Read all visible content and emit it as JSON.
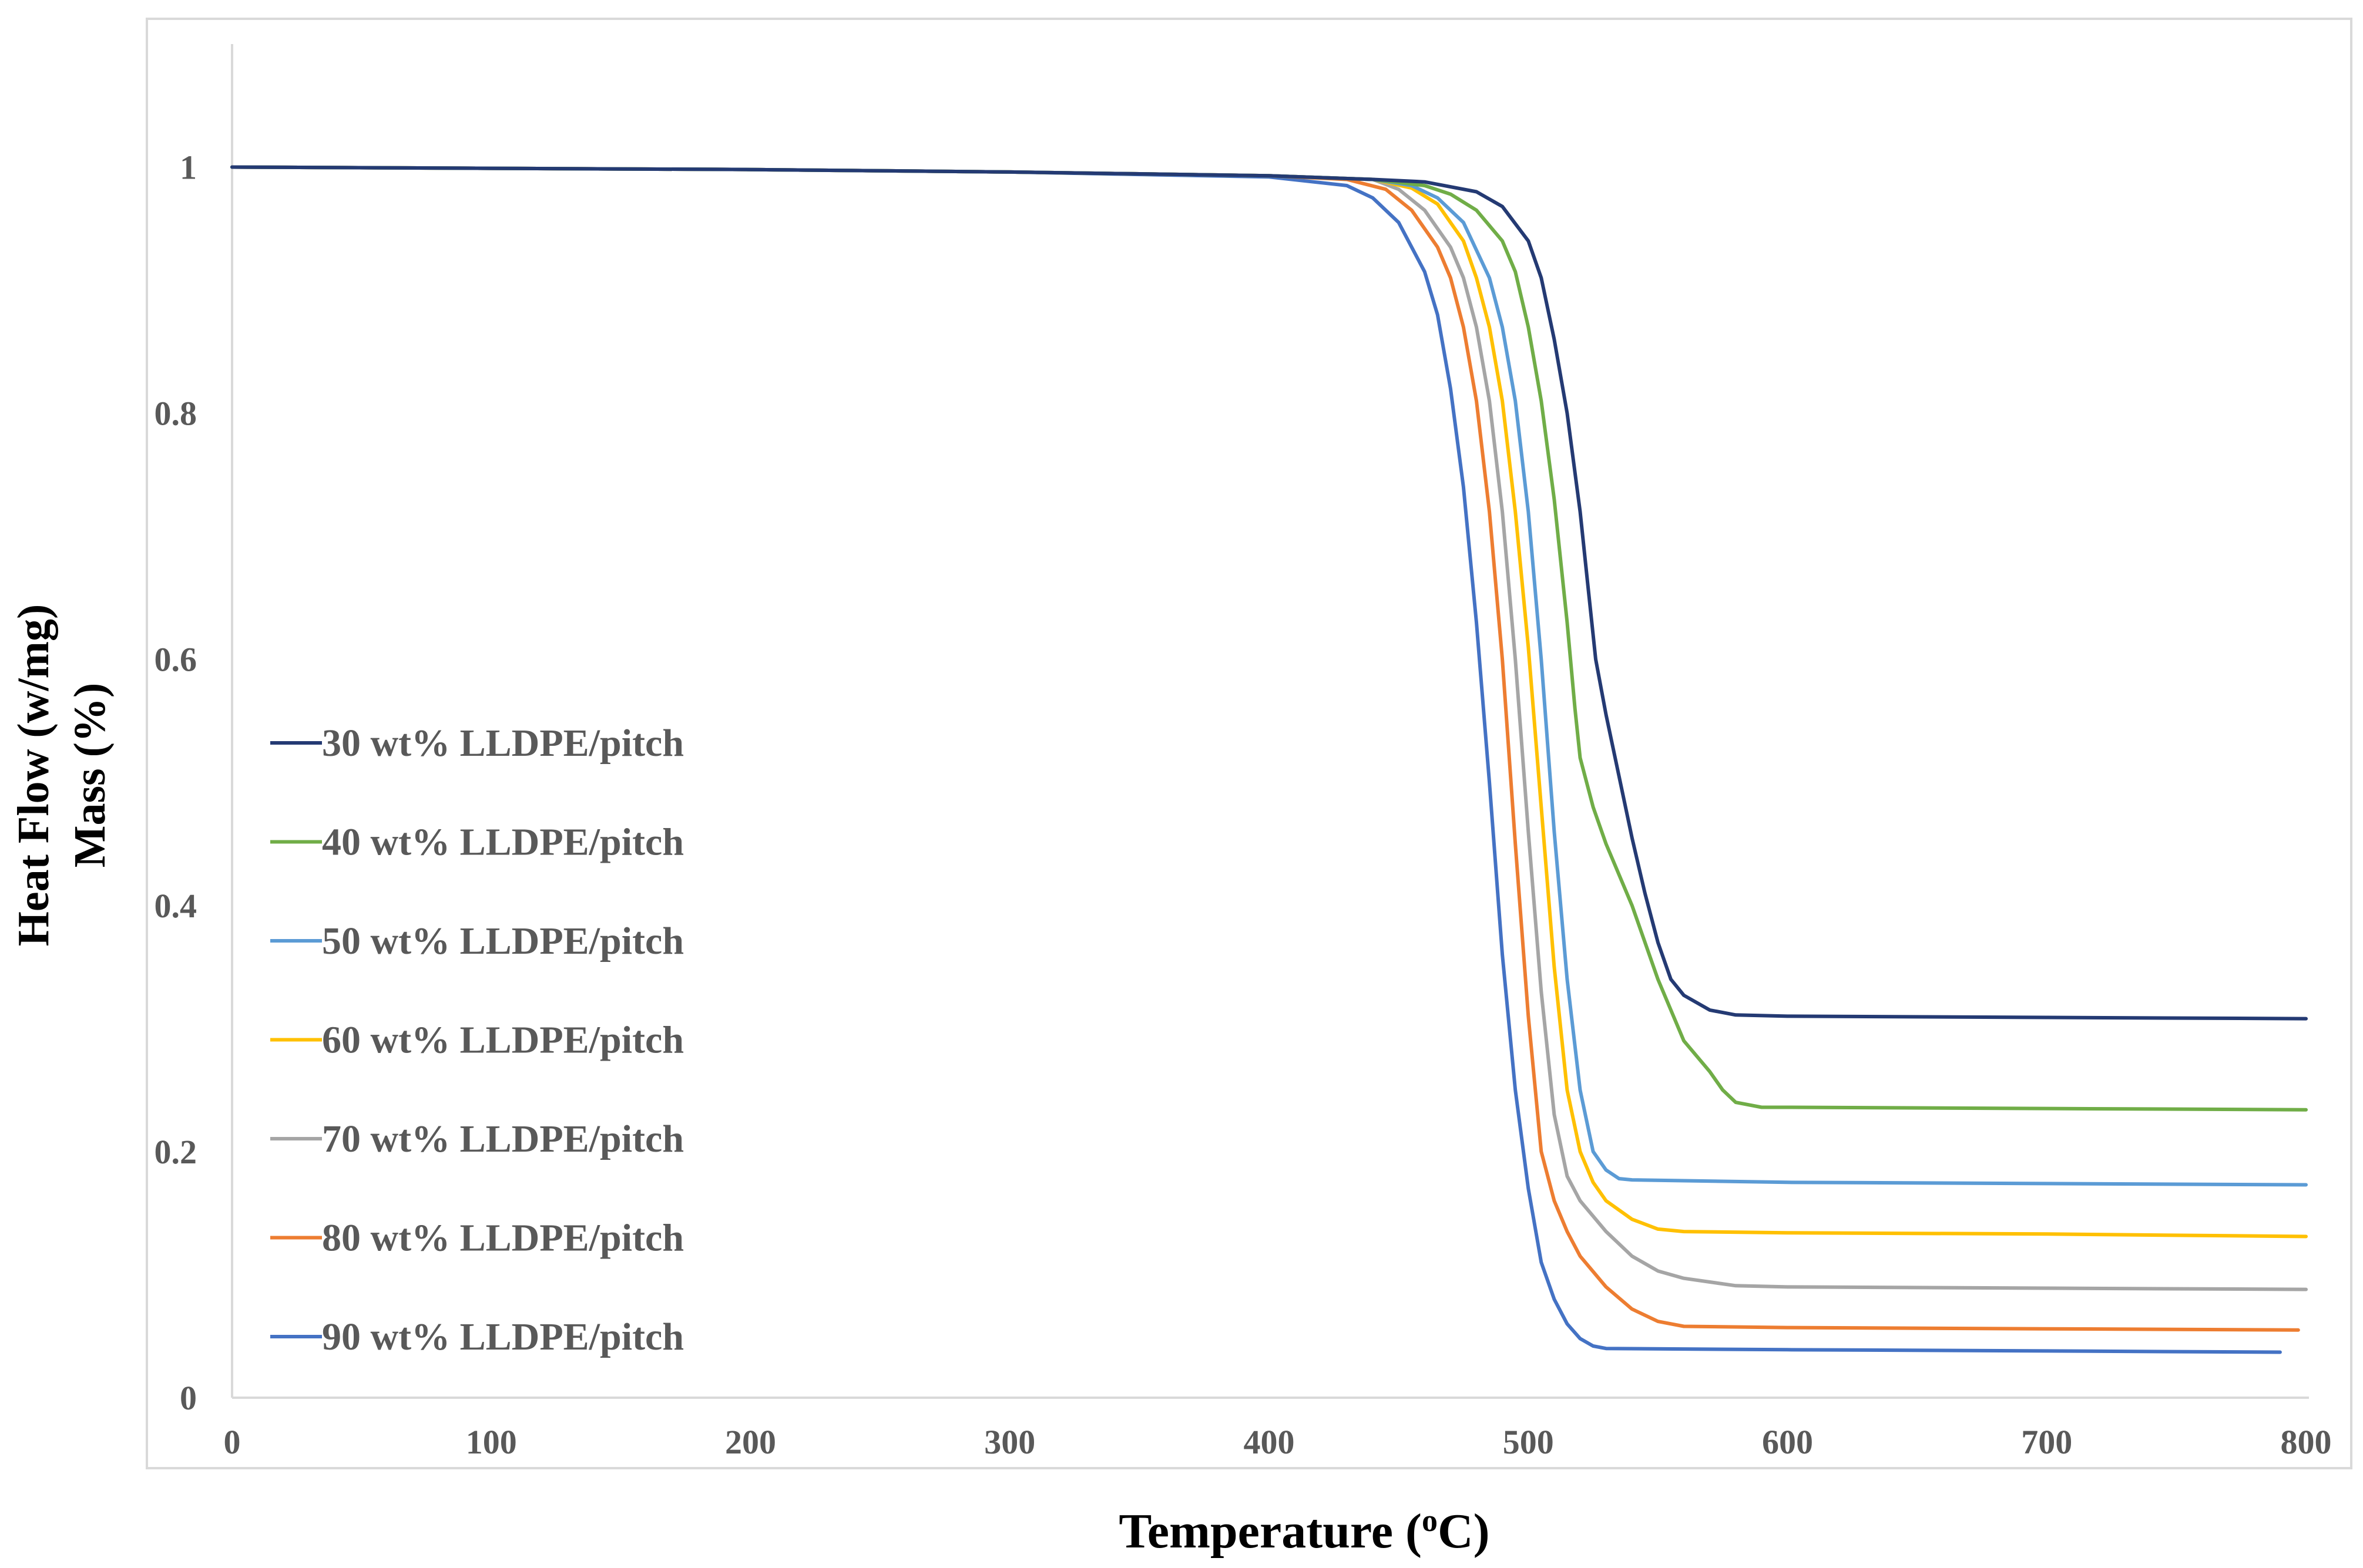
{
  "chart_data": {
    "type": "line",
    "title": "",
    "xlabel": "Temperature (",
    "xlabel_sup": "o",
    "xlabel_unit": "C)",
    "ylabel_line1": "Heat Flow (w/mg)",
    "ylabel_line2": "Mass (%)",
    "xlim": [
      0,
      800
    ],
    "ylim": [
      0,
      1.1
    ],
    "x_ticks": [
      0,
      100,
      200,
      300,
      400,
      500,
      600,
      700,
      800
    ],
    "x_tick_labels": [
      "0",
      "100",
      "200",
      "300",
      "400",
      "500",
      "600",
      "700",
      "800"
    ],
    "y_ticks": [
      0,
      0.2,
      0.4,
      0.6,
      0.8,
      1
    ],
    "y_tick_labels": [
      "0",
      "0.2",
      "0.4",
      "0.6",
      "0.8",
      "1"
    ],
    "grid": false,
    "legend_position": "left-middle",
    "series": [
      {
        "name": "30 wt% LLDPE/pitch",
        "color": "#243A73",
        "points": [
          [
            0,
            1.0
          ],
          [
            100,
            0.999
          ],
          [
            200,
            0.998
          ],
          [
            300,
            0.996
          ],
          [
            400,
            0.993
          ],
          [
            440,
            0.99
          ],
          [
            460,
            0.988
          ],
          [
            480,
            0.98
          ],
          [
            490,
            0.968
          ],
          [
            500,
            0.94
          ],
          [
            505,
            0.91
          ],
          [
            510,
            0.86
          ],
          [
            515,
            0.8
          ],
          [
            520,
            0.72
          ],
          [
            523,
            0.66
          ],
          [
            526,
            0.6
          ],
          [
            530,
            0.555
          ],
          [
            535,
            0.505
          ],
          [
            540,
            0.455
          ],
          [
            545,
            0.41
          ],
          [
            550,
            0.37
          ],
          [
            555,
            0.34
          ],
          [
            560,
            0.327
          ],
          [
            570,
            0.315
          ],
          [
            580,
            0.311
          ],
          [
            600,
            0.31
          ],
          [
            700,
            0.309
          ],
          [
            800,
            0.308
          ]
        ]
      },
      {
        "name": "40 wt% LLDPE/pitch",
        "color": "#70AD47",
        "points": [
          [
            0,
            1.0
          ],
          [
            100,
            0.999
          ],
          [
            200,
            0.998
          ],
          [
            300,
            0.996
          ],
          [
            400,
            0.993
          ],
          [
            440,
            0.99
          ],
          [
            460,
            0.985
          ],
          [
            470,
            0.978
          ],
          [
            480,
            0.965
          ],
          [
            490,
            0.94
          ],
          [
            495,
            0.915
          ],
          [
            500,
            0.87
          ],
          [
            505,
            0.81
          ],
          [
            510,
            0.73
          ],
          [
            515,
            0.63
          ],
          [
            518,
            0.56
          ],
          [
            520,
            0.52
          ],
          [
            525,
            0.48
          ],
          [
            530,
            0.45
          ],
          [
            540,
            0.4
          ],
          [
            550,
            0.34
          ],
          [
            560,
            0.29
          ],
          [
            570,
            0.265
          ],
          [
            575,
            0.25
          ],
          [
            580,
            0.24
          ],
          [
            590,
            0.236
          ],
          [
            600,
            0.236
          ],
          [
            700,
            0.235
          ],
          [
            800,
            0.234
          ]
        ]
      },
      {
        "name": "50 wt% LLDPE/pitch",
        "color": "#5B9BD5",
        "points": [
          [
            0,
            1.0
          ],
          [
            100,
            0.999
          ],
          [
            200,
            0.998
          ],
          [
            300,
            0.996
          ],
          [
            400,
            0.993
          ],
          [
            440,
            0.99
          ],
          [
            455,
            0.985
          ],
          [
            465,
            0.975
          ],
          [
            475,
            0.955
          ],
          [
            485,
            0.91
          ],
          [
            490,
            0.87
          ],
          [
            495,
            0.81
          ],
          [
            500,
            0.72
          ],
          [
            505,
            0.6
          ],
          [
            510,
            0.46
          ],
          [
            515,
            0.34
          ],
          [
            520,
            0.25
          ],
          [
            525,
            0.2
          ],
          [
            530,
            0.185
          ],
          [
            535,
            0.178
          ],
          [
            540,
            0.177
          ],
          [
            600,
            0.175
          ],
          [
            700,
            0.174
          ],
          [
            800,
            0.173
          ]
        ]
      },
      {
        "name": "60 wt% LLDPE/pitch",
        "color": "#FFC000",
        "points": [
          [
            0,
            1.0
          ],
          [
            100,
            0.999
          ],
          [
            200,
            0.998
          ],
          [
            300,
            0.996
          ],
          [
            400,
            0.993
          ],
          [
            440,
            0.99
          ],
          [
            455,
            0.983
          ],
          [
            465,
            0.97
          ],
          [
            475,
            0.94
          ],
          [
            480,
            0.91
          ],
          [
            485,
            0.87
          ],
          [
            490,
            0.81
          ],
          [
            495,
            0.72
          ],
          [
            500,
            0.61
          ],
          [
            505,
            0.48
          ],
          [
            510,
            0.35
          ],
          [
            515,
            0.25
          ],
          [
            520,
            0.2
          ],
          [
            525,
            0.175
          ],
          [
            530,
            0.16
          ],
          [
            540,
            0.145
          ],
          [
            550,
            0.137
          ],
          [
            560,
            0.135
          ],
          [
            600,
            0.134
          ],
          [
            700,
            0.133
          ],
          [
            800,
            0.131
          ]
        ]
      },
      {
        "name": "70 wt% LLDPE/pitch",
        "color": "#A5A5A5",
        "points": [
          [
            0,
            1.0
          ],
          [
            100,
            0.999
          ],
          [
            200,
            0.998
          ],
          [
            300,
            0.996
          ],
          [
            400,
            0.993
          ],
          [
            440,
            0.99
          ],
          [
            450,
            0.982
          ],
          [
            460,
            0.965
          ],
          [
            470,
            0.935
          ],
          [
            475,
            0.91
          ],
          [
            480,
            0.87
          ],
          [
            485,
            0.81
          ],
          [
            490,
            0.72
          ],
          [
            495,
            0.6
          ],
          [
            500,
            0.46
          ],
          [
            505,
            0.33
          ],
          [
            510,
            0.23
          ],
          [
            515,
            0.18
          ],
          [
            520,
            0.16
          ],
          [
            530,
            0.135
          ],
          [
            540,
            0.115
          ],
          [
            550,
            0.103
          ],
          [
            560,
            0.097
          ],
          [
            580,
            0.091
          ],
          [
            600,
            0.09
          ],
          [
            700,
            0.089
          ],
          [
            800,
            0.088
          ]
        ]
      },
      {
        "name": "80 wt% LLDPE/pitch",
        "color": "#ED7D31",
        "points": [
          [
            0,
            1.0
          ],
          [
            100,
            0.999
          ],
          [
            200,
            0.998
          ],
          [
            300,
            0.996
          ],
          [
            400,
            0.993
          ],
          [
            430,
            0.99
          ],
          [
            445,
            0.982
          ],
          [
            455,
            0.965
          ],
          [
            465,
            0.935
          ],
          [
            470,
            0.91
          ],
          [
            475,
            0.87
          ],
          [
            480,
            0.81
          ],
          [
            485,
            0.72
          ],
          [
            490,
            0.6
          ],
          [
            495,
            0.45
          ],
          [
            500,
            0.31
          ],
          [
            505,
            0.2
          ],
          [
            510,
            0.16
          ],
          [
            515,
            0.135
          ],
          [
            520,
            0.115
          ],
          [
            530,
            0.09
          ],
          [
            540,
            0.072
          ],
          [
            550,
            0.062
          ],
          [
            560,
            0.058
          ],
          [
            600,
            0.057
          ],
          [
            700,
            0.056
          ],
          [
            797,
            0.055
          ]
        ]
      },
      {
        "name": "90 wt% LLDPE/pitch",
        "color": "#4472C4",
        "points": [
          [
            0,
            1.0
          ],
          [
            100,
            0.999
          ],
          [
            200,
            0.998
          ],
          [
            300,
            0.996
          ],
          [
            400,
            0.992
          ],
          [
            430,
            0.985
          ],
          [
            440,
            0.975
          ],
          [
            450,
            0.955
          ],
          [
            460,
            0.915
          ],
          [
            465,
            0.88
          ],
          [
            470,
            0.82
          ],
          [
            475,
            0.74
          ],
          [
            480,
            0.63
          ],
          [
            485,
            0.5
          ],
          [
            490,
            0.36
          ],
          [
            495,
            0.25
          ],
          [
            500,
            0.17
          ],
          [
            505,
            0.11
          ],
          [
            510,
            0.08
          ],
          [
            515,
            0.06
          ],
          [
            520,
            0.048
          ],
          [
            525,
            0.042
          ],
          [
            530,
            0.04
          ],
          [
            600,
            0.039
          ],
          [
            700,
            0.038
          ],
          [
            790,
            0.037
          ]
        ]
      }
    ]
  }
}
